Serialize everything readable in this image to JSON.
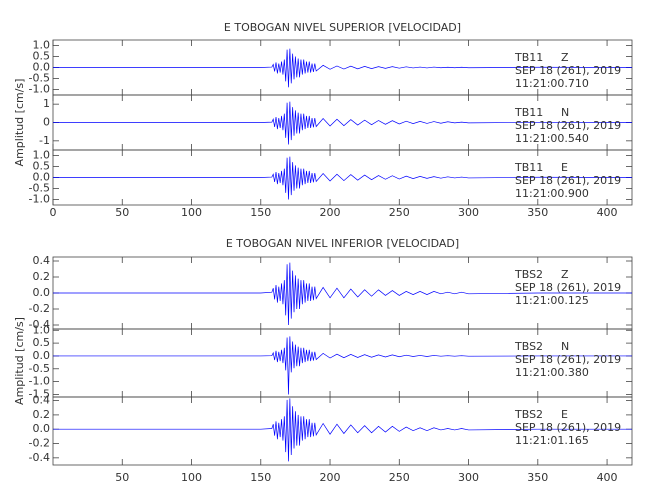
{
  "chart_data": [
    {
      "type": "line",
      "title": "E TOBOGAN NIVEL SUPERIOR [VELOCIDAD]",
      "y_label": "Amplitud [cm/s]",
      "xlim": [
        0,
        418
      ],
      "xticks": [
        0,
        50,
        100,
        150,
        200,
        250,
        300,
        350,
        400
      ],
      "x": [
        0,
        50,
        100,
        150,
        158,
        159,
        160,
        161,
        162,
        163,
        164,
        165,
        166,
        167,
        168,
        169,
        170,
        171,
        172,
        173,
        174,
        175,
        176,
        177,
        178,
        179,
        180,
        181,
        182,
        183,
        184,
        185,
        186,
        187,
        188,
        189,
        190,
        195,
        200,
        205,
        210,
        215,
        220,
        225,
        230,
        235,
        240,
        245,
        250,
        255,
        260,
        265,
        270,
        275,
        280,
        285,
        290,
        295,
        300,
        350,
        418
      ],
      "series": [
        {
          "station": "TB11",
          "component": "Z",
          "date": "SEP 18 (261), 2019",
          "time": "11:21:00.710",
          "color": "#0000ff",
          "ylim": [
            -1.25,
            1.25
          ],
          "yticks": [
            {
              "value": 1,
              "label": "1.0"
            },
            {
              "value": 0.5,
              "label": "0.5"
            },
            {
              "value": 0,
              "label": "0.0"
            },
            {
              "value": -0.5,
              "label": "-0.5"
            },
            {
              "value": -1,
              "label": "-1.0"
            }
          ],
          "values": [
            0,
            0,
            0,
            0,
            0.02,
            0.14,
            -0.18,
            0.23,
            -0.27,
            0.18,
            -0.23,
            0.27,
            -0.32,
            0.36,
            -0.63,
            0.81,
            -0.9,
            0.86,
            -0.72,
            0.63,
            -0.54,
            0.5,
            -0.45,
            0.41,
            -0.45,
            0.36,
            -0.32,
            0.36,
            -0.27,
            0.27,
            -0.23,
            0.27,
            -0.23,
            0.18,
            -0.2,
            0.18,
            -0.16,
            0.1,
            -0.08,
            0.07,
            -0.07,
            0.06,
            -0.06,
            0.05,
            -0.05,
            0.04,
            -0.04,
            0.04,
            -0.03,
            0.03,
            -0.02,
            0.02,
            -0.02,
            0.02,
            -0.01,
            0.01,
            -0.01,
            0.01,
            -0.01,
            0.01,
            0
          ]
        },
        {
          "station": "TB11",
          "component": "N",
          "date": "SEP 18 (261), 2019",
          "time": "11:21:00.540",
          "color": "#0000ff",
          "ylim": [
            -1.5,
            1.5
          ],
          "yticks": [
            1,
            0,
            -1
          ],
          "values": [
            0,
            0,
            0,
            0,
            0.02,
            0.18,
            -0.24,
            0.3,
            -0.36,
            0.24,
            -0.3,
            0.36,
            -0.42,
            0.48,
            -0.84,
            1.08,
            -1.2,
            1.14,
            -0.96,
            0.84,
            -0.72,
            0.66,
            -0.6,
            0.54,
            -0.6,
            0.48,
            -0.42,
            0.48,
            -0.36,
            0.36,
            -0.3,
            0.36,
            -0.3,
            0.24,
            -0.26,
            0.24,
            -0.22,
            0.22,
            -0.19,
            0.18,
            -0.17,
            0.16,
            -0.14,
            0.13,
            -0.12,
            0.11,
            -0.1,
            0.1,
            -0.08,
            0.07,
            -0.06,
            0.06,
            -0.05,
            0.05,
            -0.04,
            0.04,
            -0.02,
            0.02,
            -0.02,
            0.01,
            0
          ]
        },
        {
          "station": "TB11",
          "component": "E",
          "date": "SEP 18 (261), 2019",
          "time": "11:21:00.900",
          "color": "#0000ff",
          "ylim": [
            -1.25,
            1.25
          ],
          "yticks": [
            {
              "value": 1,
              "label": "1.0"
            },
            {
              "value": 0.5,
              "label": "0.5"
            },
            {
              "value": 0,
              "label": "0.0"
            },
            {
              "value": -0.5,
              "label": "-0.5"
            },
            {
              "value": -1,
              "label": "-1.0"
            }
          ],
          "values": [
            0,
            0,
            0,
            0,
            0.02,
            0.15,
            -0.2,
            0.25,
            -0.3,
            0.2,
            -0.25,
            0.3,
            -0.35,
            0.4,
            -0.7,
            0.9,
            -1.0,
            0.95,
            -0.8,
            0.7,
            -0.6,
            0.55,
            -0.5,
            0.45,
            -0.5,
            0.4,
            -0.35,
            0.4,
            -0.3,
            0.3,
            -0.25,
            0.3,
            -0.25,
            0.2,
            -0.22,
            0.2,
            -0.18,
            0.18,
            -0.16,
            0.15,
            -0.14,
            0.13,
            -0.12,
            0.11,
            -0.1,
            0.09,
            -0.08,
            0.08,
            -0.07,
            0.06,
            -0.05,
            0.05,
            -0.04,
            0.04,
            -0.03,
            0.03,
            -0.02,
            0.02,
            -0.02,
            0.01,
            0
          ]
        }
      ]
    },
    {
      "type": "line",
      "title": "E TOBOGAN NIVEL INFERIOR [VELOCIDAD]",
      "y_label": "Amplitud [cm/s]",
      "xlim": [
        0,
        418
      ],
      "xticks": [
        50,
        100,
        150,
        200,
        250,
        300,
        350,
        400
      ],
      "x": [
        0,
        50,
        100,
        150,
        158,
        159,
        160,
        161,
        162,
        163,
        164,
        165,
        166,
        167,
        168,
        169,
        170,
        171,
        172,
        173,
        174,
        175,
        176,
        177,
        178,
        179,
        180,
        181,
        182,
        183,
        184,
        185,
        186,
        187,
        188,
        189,
        190,
        195,
        200,
        205,
        210,
        215,
        220,
        225,
        230,
        235,
        240,
        245,
        250,
        255,
        260,
        265,
        270,
        275,
        280,
        285,
        290,
        295,
        300,
        350,
        418
      ],
      "series": [
        {
          "station": "TBS2",
          "component": "Z",
          "date": "SEP 18 (261), 2019",
          "time": "11:21:00.125",
          "color": "#0000ff",
          "ylim": [
            -0.45,
            0.45
          ],
          "yticks": [
            0.4,
            0.2,
            {
              "value": 0,
              "label": "0.0"
            },
            -0.2,
            -0.4
          ],
          "values": [
            0,
            0,
            0,
            0,
            0.01,
            0.06,
            -0.08,
            0.1,
            -0.12,
            0.08,
            -0.1,
            0.12,
            -0.14,
            0.16,
            -0.28,
            0.36,
            -0.4,
            0.38,
            -0.32,
            0.28,
            -0.24,
            0.22,
            -0.2,
            0.18,
            -0.2,
            0.16,
            -0.14,
            0.16,
            -0.12,
            0.12,
            -0.1,
            0.12,
            -0.1,
            0.08,
            -0.09,
            0.08,
            -0.07,
            0.07,
            -0.06,
            0.06,
            -0.06,
            0.05,
            -0.05,
            0.04,
            -0.04,
            0.04,
            -0.03,
            0.03,
            -0.03,
            0.02,
            -0.02,
            0.02,
            -0.02,
            0.02,
            -0.01,
            0.01,
            -0.01,
            0.01,
            -0.01,
            0,
            0
          ]
        },
        {
          "station": "TBS2",
          "component": "N",
          "date": "SEP 18 (261), 2019",
          "time": "11:21:00.380",
          "color": "#0000ff",
          "ylim": [
            -1.6,
            1.05
          ],
          "yticks": [
            {
              "value": 1,
              "label": "1.0"
            },
            0.5,
            {
              "value": 0,
              "label": "0.0"
            },
            -0.5,
            {
              "value": -1,
              "label": "-1.0"
            },
            -1.5
          ],
          "values": [
            0,
            0,
            0,
            0,
            0.01,
            0.12,
            -0.16,
            0.2,
            -0.24,
            0.16,
            -0.2,
            0.24,
            -0.28,
            0.32,
            -0.56,
            0.72,
            -1.5,
            0.76,
            -0.64,
            0.56,
            -0.48,
            0.44,
            -0.4,
            0.36,
            -0.4,
            0.32,
            -0.28,
            0.32,
            -0.24,
            0.24,
            -0.2,
            0.24,
            -0.2,
            0.16,
            -0.18,
            0.16,
            -0.14,
            0.1,
            -0.08,
            0.07,
            -0.07,
            0.06,
            -0.06,
            0.05,
            -0.05,
            0.04,
            -0.04,
            0.04,
            -0.03,
            0.03,
            -0.02,
            0.02,
            -0.02,
            0.02,
            -0.01,
            0.01,
            -0.01,
            0.01,
            -0.01,
            0,
            0
          ]
        },
        {
          "station": "TBS2",
          "component": "E",
          "date": "SEP 18 (261), 2019",
          "time": "11:21:01.165",
          "color": "#0000ff",
          "ylim": [
            -0.5,
            0.45
          ],
          "yticks": [
            0.4,
            0.2,
            {
              "value": 0,
              "label": "0.0"
            },
            -0.2,
            -0.4
          ],
          "values": [
            0,
            0,
            0,
            0,
            0.01,
            0.07,
            -0.09,
            0.11,
            -0.14,
            0.09,
            -0.11,
            0.14,
            -0.16,
            0.18,
            -0.32,
            0.41,
            -0.45,
            0.43,
            -0.36,
            0.32,
            -0.27,
            0.25,
            -0.23,
            0.2,
            -0.23,
            0.18,
            -0.16,
            0.18,
            -0.14,
            0.14,
            -0.11,
            0.14,
            -0.11,
            0.09,
            -0.1,
            0.09,
            -0.08,
            0.08,
            -0.07,
            0.07,
            -0.06,
            0.06,
            -0.05,
            0.05,
            -0.05,
            0.04,
            -0.04,
            0.04,
            -0.03,
            0.03,
            -0.02,
            0.02,
            -0.02,
            0.02,
            -0.01,
            0.01,
            -0.01,
            0.01,
            -0.01,
            0,
            0
          ]
        }
      ]
    }
  ]
}
